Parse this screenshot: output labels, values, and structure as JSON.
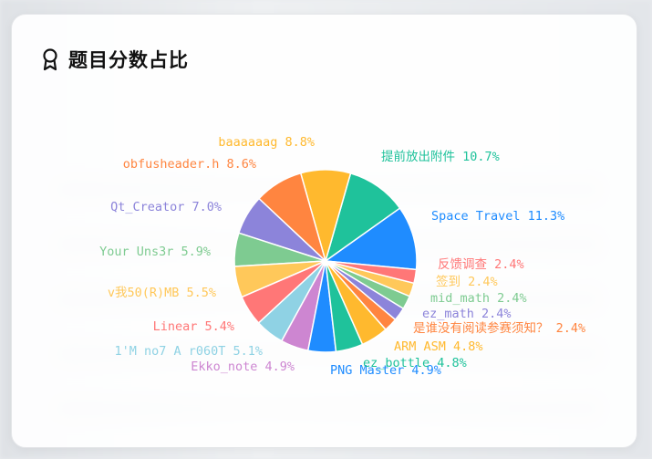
{
  "card": {
    "title": "题目分数占比",
    "icon": "award-ribbon-icon"
  },
  "chart_data": {
    "type": "pie",
    "title": "题目分数占比",
    "slices": [
      {
        "name": "Space Travel",
        "percent": 11.3,
        "color": "#1f8cff"
      },
      {
        "name": "提前放出附件",
        "percent": 10.7,
        "color": "#1fc29b"
      },
      {
        "name": "baaaaaag",
        "percent": 8.8,
        "color": "#ffb92e"
      },
      {
        "name": "obfusheader.h",
        "percent": 8.6,
        "color": "#ff8540"
      },
      {
        "name": "Qt_Creator",
        "percent": 7.0,
        "color": "#8c84da"
      },
      {
        "name": "Your Uns3r",
        "percent": 5.9,
        "color": "#7ecb91"
      },
      {
        "name": "v我50(R)MB",
        "percent": 5.5,
        "color": "#ffc85a"
      },
      {
        "name": "Linear",
        "percent": 5.4,
        "color": "#ff7777"
      },
      {
        "name": "1'M no7 A r060T",
        "percent": 5.1,
        "color": "#8fd2e4"
      },
      {
        "name": "Ekko_note",
        "percent": 4.9,
        "color": "#cd86d1"
      },
      {
        "name": "PNG Master",
        "percent": 4.9,
        "color": "#1f8cff"
      },
      {
        "name": "ez_bottle",
        "percent": 4.8,
        "color": "#1fc29b"
      },
      {
        "name": "ARM ASM",
        "percent": 4.8,
        "color": "#ffb92e"
      },
      {
        "name": "是谁没有阅读参赛须知？",
        "percent": 2.4,
        "color": "#ff8540"
      },
      {
        "name": "ez_math",
        "percent": 2.4,
        "color": "#8c84da"
      },
      {
        "name": "mid_math",
        "percent": 2.4,
        "color": "#7ecb91"
      },
      {
        "name": "签到",
        "percent": 2.4,
        "color": "#ffc85a"
      },
      {
        "name": "反馈调查",
        "percent": 2.4,
        "color": "#ff7777"
      }
    ]
  }
}
